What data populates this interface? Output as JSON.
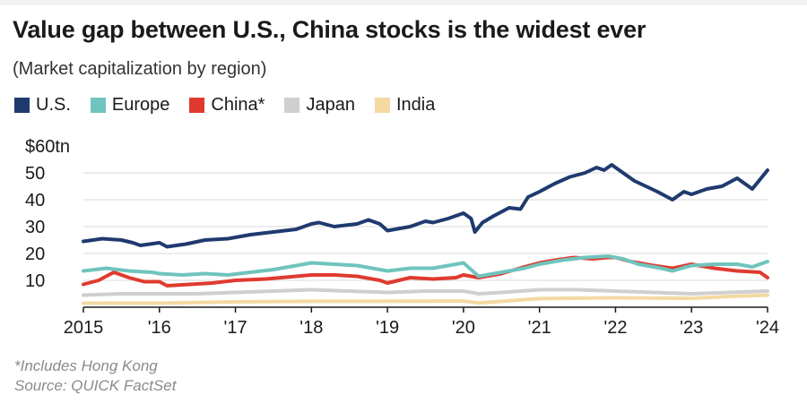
{
  "chart_data": {
    "type": "line",
    "title": "Value gap between U.S., China stocks is the widest ever",
    "subtitle": "(Market capitalization by region)",
    "y_unit_label": "$60tn",
    "ylim": [
      0,
      60
    ],
    "y_ticks": [
      {
        "value": 60,
        "label": "$60tn"
      },
      {
        "value": 50,
        "label": "50"
      },
      {
        "value": 40,
        "label": "40"
      },
      {
        "value": 30,
        "label": "30"
      },
      {
        "value": 20,
        "label": "20"
      },
      {
        "value": 10,
        "label": "10"
      }
    ],
    "xlim": [
      2015,
      2024
    ],
    "x_ticks": [
      {
        "value": 2015,
        "label": "2015"
      },
      {
        "value": 2016,
        "label": "'16"
      },
      {
        "value": 2017,
        "label": "'17"
      },
      {
        "value": 2018,
        "label": "'18"
      },
      {
        "value": 2019,
        "label": "'19"
      },
      {
        "value": 2020,
        "label": "'20"
      },
      {
        "value": 2021,
        "label": "'21"
      },
      {
        "value": 2022,
        "label": "'22"
      },
      {
        "value": 2023,
        "label": "'23"
      },
      {
        "value": 2024,
        "label": "'24"
      }
    ],
    "grid": true,
    "legend_position": "top-left",
    "series": [
      {
        "name": "U.S.",
        "color": "#1f3a6e",
        "width": 4,
        "x": [
          2015.0,
          2015.25,
          2015.5,
          2015.65,
          2015.75,
          2016.0,
          2016.1,
          2016.35,
          2016.6,
          2016.9,
          2017.2,
          2017.5,
          2017.8,
          2018.0,
          2018.1,
          2018.3,
          2018.6,
          2018.75,
          2018.9,
          2019.0,
          2019.3,
          2019.5,
          2019.6,
          2019.8,
          2020.0,
          2020.1,
          2020.15,
          2020.25,
          2020.4,
          2020.6,
          2020.75,
          2020.85,
          2021.0,
          2021.2,
          2021.4,
          2021.6,
          2021.75,
          2021.85,
          2021.95,
          2022.1,
          2022.25,
          2022.4,
          2022.55,
          2022.75,
          2022.9,
          2023.0,
          2023.2,
          2023.4,
          2023.6,
          2023.8,
          2024.0
        ],
        "y": [
          24.5,
          25.5,
          25,
          24,
          23,
          24,
          22.5,
          23.5,
          25,
          25.5,
          27,
          28,
          29,
          31,
          31.5,
          30,
          31,
          32.5,
          31,
          28.5,
          30,
          32,
          31.5,
          33,
          35,
          33,
          28,
          31.5,
          34,
          37,
          36.5,
          41,
          43,
          46,
          48.5,
          50,
          52,
          51,
          53,
          50,
          47,
          45,
          43,
          40,
          43,
          42,
          44,
          45,
          48,
          44,
          51
        ]
      },
      {
        "name": "Europe",
        "color": "#6fc4bd",
        "width": 4,
        "x": [
          2015.0,
          2015.3,
          2015.6,
          2015.9,
          2016.0,
          2016.3,
          2016.6,
          2016.9,
          2017.2,
          2017.5,
          2017.8,
          2018.0,
          2018.3,
          2018.6,
          2018.9,
          2019.0,
          2019.3,
          2019.6,
          2019.9,
          2020.0,
          2020.2,
          2020.5,
          2020.8,
          2021.0,
          2021.3,
          2021.6,
          2021.9,
          2022.1,
          2022.3,
          2022.6,
          2022.75,
          2023.0,
          2023.3,
          2023.6,
          2023.8,
          2024.0
        ],
        "y": [
          13.5,
          14.5,
          13.5,
          13,
          12.5,
          12,
          12.5,
          12,
          13,
          14,
          15.5,
          16.5,
          16,
          15.5,
          14,
          13.5,
          14.5,
          14.5,
          16,
          16.5,
          11.5,
          13,
          14.5,
          16,
          17.5,
          18.5,
          19,
          18,
          16,
          14.5,
          13.5,
          15.5,
          16,
          16,
          15,
          17
        ]
      },
      {
        "name": "China*",
        "color": "#e03a2f",
        "width": 4,
        "x": [
          2015.0,
          2015.2,
          2015.4,
          2015.6,
          2015.8,
          2016.0,
          2016.1,
          2016.4,
          2016.7,
          2017.0,
          2017.4,
          2017.8,
          2018.0,
          2018.3,
          2018.6,
          2018.9,
          2019.0,
          2019.3,
          2019.6,
          2019.9,
          2020.0,
          2020.2,
          2020.5,
          2020.8,
          2021.0,
          2021.2,
          2021.45,
          2021.7,
          2021.9,
          2022.0,
          2022.2,
          2022.5,
          2022.75,
          2023.0,
          2023.3,
          2023.6,
          2023.9,
          2024.0
        ],
        "y": [
          8.5,
          10,
          13,
          11,
          9.5,
          9.5,
          8,
          8.5,
          9,
          10,
          10.5,
          11.5,
          12,
          12,
          11.5,
          10,
          9,
          11,
          10.5,
          11,
          12,
          11,
          12.5,
          15,
          16.5,
          17.5,
          18.5,
          18,
          18.5,
          18.5,
          17,
          15.5,
          14.5,
          16,
          14.5,
          13.5,
          13,
          11
        ]
      },
      {
        "name": "Japan",
        "color": "#cfcfcf",
        "width": 4,
        "x": [
          2015.0,
          2015.5,
          2016.0,
          2016.5,
          2017.0,
          2017.5,
          2018.0,
          2018.5,
          2019.0,
          2019.5,
          2020.0,
          2020.2,
          2020.5,
          2021.0,
          2021.5,
          2022.0,
          2022.5,
          2023.0,
          2023.5,
          2024.0
        ],
        "y": [
          4.5,
          5,
          5,
          5,
          5.5,
          6,
          6.5,
          6,
          5.5,
          6,
          6,
          5,
          5.5,
          6.5,
          6.5,
          6,
          5.5,
          5,
          5.5,
          6
        ]
      },
      {
        "name": "India",
        "color": "#f4d9a3",
        "width": 4,
        "x": [
          2015.0,
          2016.0,
          2017.0,
          2018.0,
          2019.0,
          2020.0,
          2020.2,
          2021.0,
          2022.0,
          2023.0,
          2023.5,
          2024.0
        ],
        "y": [
          1.5,
          1.5,
          2,
          2.2,
          2.2,
          2.3,
          1.6,
          3.2,
          3.5,
          3.3,
          4,
          4.5
        ]
      }
    ],
    "footnote": "*Includes Hong Kong",
    "source": "Source: QUICK FactSet"
  }
}
